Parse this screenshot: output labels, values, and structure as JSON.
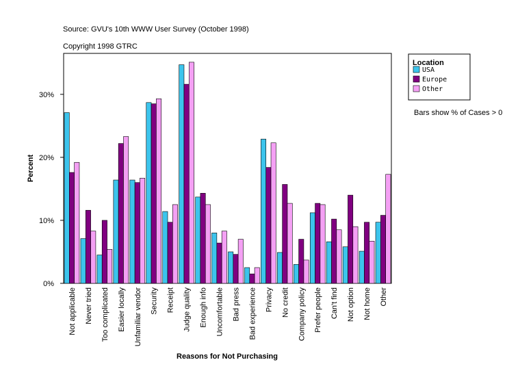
{
  "chart_data": {
    "type": "bar",
    "source": "Source: GVU's 10th WWW User Survey (October 1998)",
    "copyright": "Copyright 1998 GTRC",
    "ylabel": "Percent",
    "xlabel": "Reasons for Not Purchasing",
    "legend_title": "Location",
    "note": "Bars show % of Cases > 0",
    "categories": [
      "Not applicable",
      "Never tried",
      "Too complicated",
      "Easier locally",
      "Unfamiliar vendor",
      "Security",
      "Receipt",
      "Judge quality",
      "Enough info",
      "Uncomfortable",
      "Bad press",
      "Bad experience",
      "Privacy",
      "No credit",
      "Company policy",
      "Prefer people",
      "Can't find",
      "Not option",
      "Not home",
      "Other"
    ],
    "series": [
      {
        "name": "USA",
        "color": "#3cc4ec",
        "values": [
          27.1,
          7.1,
          4.5,
          16.4,
          16.4,
          28.7,
          11.4,
          34.7,
          13.7,
          8.0,
          5.0,
          2.5,
          22.9,
          4.9,
          3.0,
          11.2,
          6.6,
          5.8,
          5.1,
          9.7
        ]
      },
      {
        "name": "Europe",
        "color": "#800080",
        "values": [
          17.6,
          11.6,
          10.0,
          22.2,
          16.0,
          28.5,
          9.7,
          31.6,
          14.3,
          6.4,
          4.6,
          1.5,
          18.4,
          15.7,
          7.0,
          12.7,
          10.2,
          14.0,
          9.7,
          10.8
        ]
      },
      {
        "name": "Other",
        "color": "#f4a0f4",
        "values": [
          19.2,
          8.3,
          5.4,
          23.3,
          16.7,
          29.3,
          12.5,
          35.1,
          12.5,
          8.3,
          7.0,
          2.5,
          22.3,
          12.7,
          3.7,
          12.5,
          8.5,
          9.0,
          6.7,
          17.3
        ]
      }
    ],
    "ylim": [
      0,
      36.5
    ],
    "yticks": [
      {
        "value": 0,
        "label": "0%"
      },
      {
        "value": 10,
        "label": "10%"
      },
      {
        "value": 20,
        "label": "20%"
      },
      {
        "value": 30,
        "label": "30%"
      }
    ]
  }
}
